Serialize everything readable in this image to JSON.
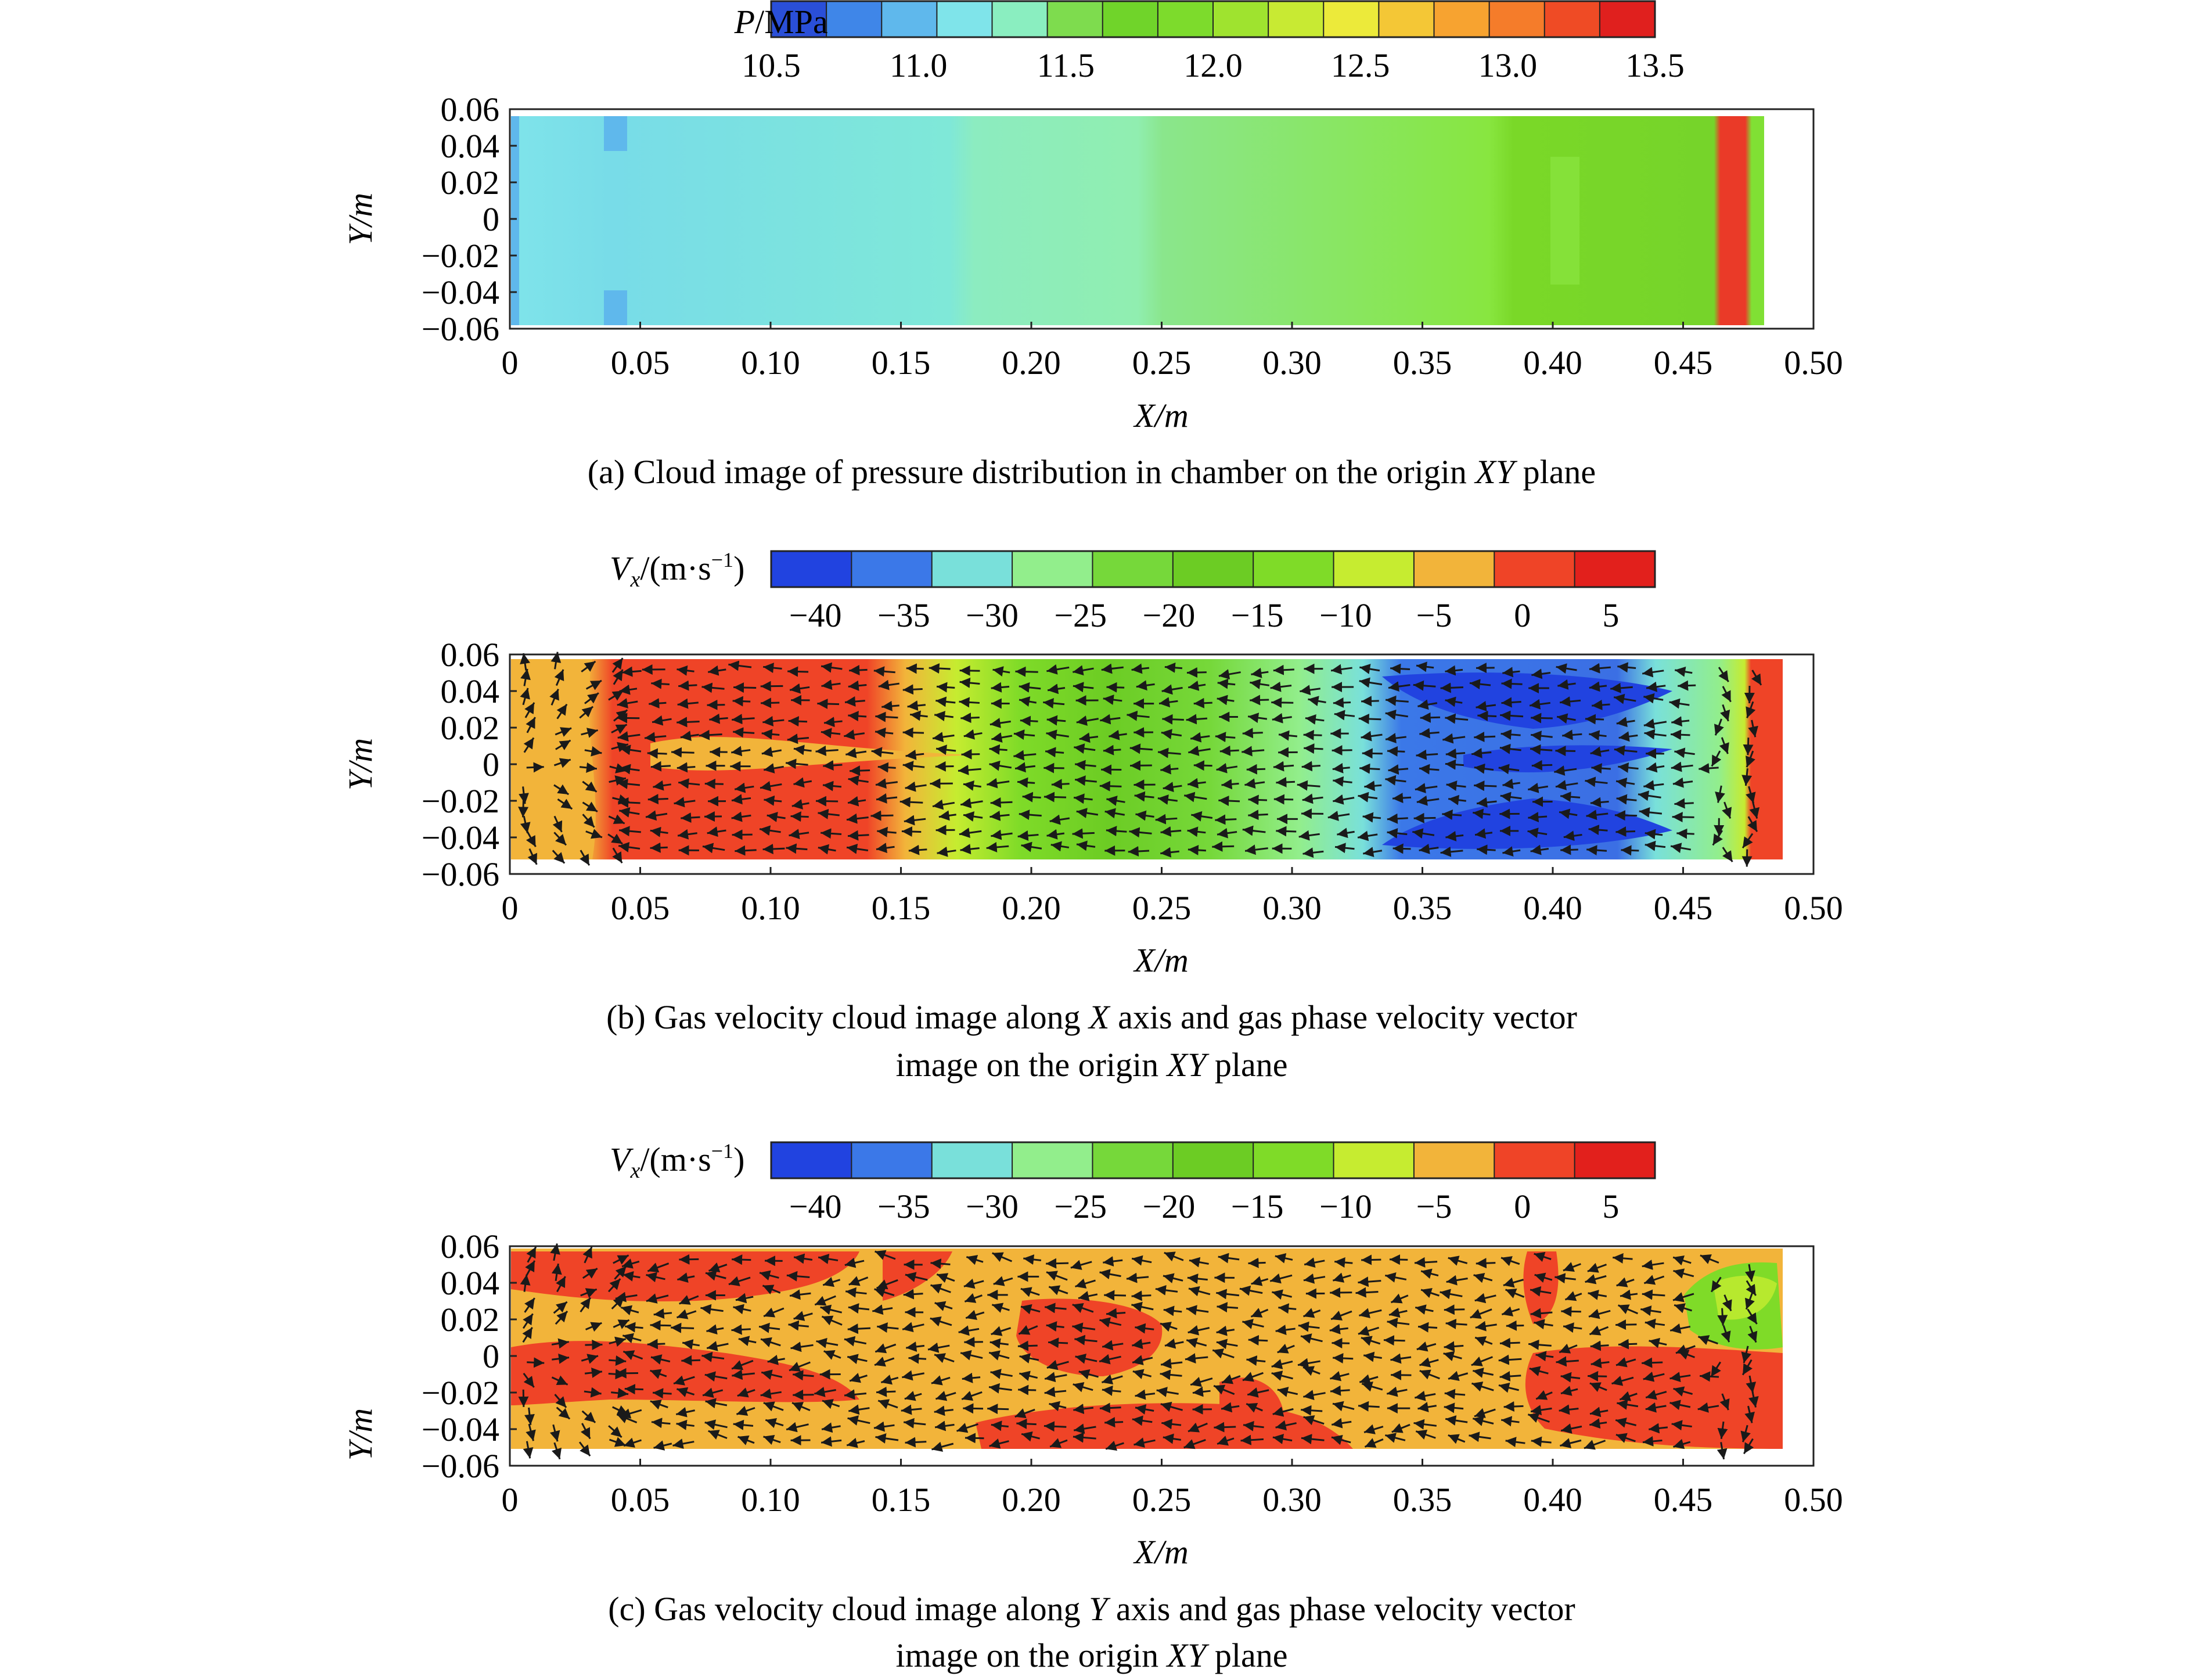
{
  "colors": {
    "pressure_scale": [
      "#2a4fd8",
      "#3f86e8",
      "#5fb8ec",
      "#7fe4ea",
      "#8aeec0",
      "#7edc4e",
      "#70d42a",
      "#7ddb2c",
      "#9fe32f",
      "#c8ea33",
      "#ecea3a",
      "#f4c736",
      "#f7a330",
      "#f57c2a",
      "#ef4b25",
      "#e0201e"
    ],
    "velocity_scale": [
      "#2143e0",
      "#3b78e8",
      "#79e0da",
      "#92ee8c",
      "#76d83a",
      "#6ccc24",
      "#7fdb28",
      "#c6ec30",
      "#f2b43a",
      "#ef4427",
      "#e2201c"
    ],
    "frame": "#222222",
    "arrow": "#1a1a1a"
  },
  "chart_data": [
    {
      "type": "heatmap",
      "title": "(a) Cloud image of pressure distribution in chamber on the origin XY plane",
      "xlabel": "X/m",
      "ylabel": "Y/m",
      "xlim": [
        0,
        0.5
      ],
      "ylim": [
        -0.06,
        0.06
      ],
      "x_ticks": [
        "0",
        "0.05",
        "0.10",
        "0.15",
        "0.20",
        "0.25",
        "0.30",
        "0.35",
        "0.40",
        "0.45",
        "0.50"
      ],
      "y_ticks": [
        "0.06",
        "0.04",
        "0.02",
        "0",
        "−0.02",
        "−0.04",
        "−0.06"
      ],
      "colorbar": {
        "label_var": "P",
        "label_unit": "/MPa",
        "range": [
          10.5,
          13.5
        ],
        "ticks": [
          "10.5",
          "11.0",
          "11.5",
          "12.0",
          "12.5",
          "13.0",
          "13.5"
        ]
      },
      "regions": [
        {
          "x": [
            0.0,
            0.04
          ],
          "p": 11.15
        },
        {
          "x": [
            0.04,
            0.175
          ],
          "p": 11.2
        },
        {
          "x": [
            0.175,
            0.25
          ],
          "p": 11.35
        },
        {
          "x": [
            0.25,
            0.385
          ],
          "p": 11.55
        },
        {
          "x": [
            0.385,
            0.47
          ],
          "p": 12.05
        },
        {
          "x": [
            0.47,
            0.479
          ],
          "p": 13.4
        },
        {
          "x": [
            0.479,
            0.487
          ],
          "p": 11.8
        }
      ]
    },
    {
      "type": "heatmap",
      "title": "(b) Gas velocity cloud image along X axis and gas phase velocity vector image on the origin XY plane",
      "xlabel": "X/m",
      "ylabel": "Y/m",
      "xlim": [
        0,
        0.5
      ],
      "ylim": [
        -0.06,
        0.06
      ],
      "x_ticks": [
        "0",
        "0.05",
        "0.10",
        "0.15",
        "0.20",
        "0.25",
        "0.30",
        "0.35",
        "0.40",
        "0.45",
        "0.50"
      ],
      "y_ticks": [
        "0.06",
        "0.04",
        "0.02",
        "0",
        "−0.02",
        "−0.04",
        "−0.06"
      ],
      "colorbar": {
        "label_var": "V",
        "label_sub": "x",
        "label_unit": "/(m·s",
        "label_sup": "−1",
        "label_close": ")",
        "range": [
          -42.5,
          7.5
        ],
        "ticks": [
          "−40",
          "−35",
          "−30",
          "−25",
          "−20",
          "−15",
          "−10",
          "−5",
          "0",
          "5"
        ]
      },
      "regions": [
        {
          "x": [
            0.0,
            0.03
          ],
          "v": -3
        },
        {
          "x": [
            0.03,
            0.15
          ],
          "v": 2
        },
        {
          "x": [
            0.15,
            0.17
          ],
          "v": -5
        },
        {
          "x": [
            0.17,
            0.2
          ],
          "v": -12
        },
        {
          "x": [
            0.2,
            0.25
          ],
          "v": -18
        },
        {
          "x": [
            0.25,
            0.32
          ],
          "v": -26
        },
        {
          "x": [
            0.32,
            0.44
          ],
          "v": -38
        },
        {
          "x": [
            0.44,
            0.475
          ],
          "v": -20
        },
        {
          "x": [
            0.475,
            0.487
          ],
          "v": 4
        }
      ]
    },
    {
      "type": "heatmap",
      "title": "(c) Gas velocity cloud image along Y axis and gas phase velocity vector image on the origin XY plane",
      "xlabel": "X/m",
      "ylabel": "Y/m",
      "xlim": [
        0,
        0.5
      ],
      "ylim": [
        -0.06,
        0.06
      ],
      "x_ticks": [
        "0",
        "0.05",
        "0.10",
        "0.15",
        "0.20",
        "0.25",
        "0.30",
        "0.35",
        "0.40",
        "0.45",
        "0.50"
      ],
      "y_ticks": [
        "0.06",
        "0.04",
        "0.02",
        "0",
        "−0.02",
        "−0.04",
        "−0.06"
      ],
      "colorbar": {
        "label_var": "V",
        "label_sub": "x",
        "label_unit": "/(m·s",
        "label_sup": "−1",
        "label_close": ")",
        "range": [
          -42.5,
          7.5
        ],
        "ticks": [
          "−40",
          "−35",
          "−30",
          "−25",
          "−20",
          "−15",
          "−10",
          "−5",
          "0",
          "5"
        ]
      },
      "regions": [
        {
          "x": [
            0.0,
            0.15
          ],
          "v": 1
        },
        {
          "x": [
            0.15,
            0.4
          ],
          "v": -2
        },
        {
          "x": [
            0.4,
            0.46
          ],
          "v": 2
        },
        {
          "x": [
            0.46,
            0.487
          ],
          "v": -15
        }
      ]
    }
  ],
  "captions": [
    {
      "pre": "(a) Cloud image of pressure distribution in chamber on the origin ",
      "em": "XY",
      "post": " plane"
    },
    {
      "pre": "(b) Gas velocity cloud image along ",
      "em": "X",
      "post": " axis and gas phase velocity vector",
      "line2_pre": "image on the origin ",
      "line2_em": "XY",
      "line2_post": " plane"
    },
    {
      "pre": "(c) Gas velocity cloud image along ",
      "em": "Y",
      "post": " axis and gas phase velocity vector",
      "line2_pre": "image on the origin ",
      "line2_em": "XY",
      "line2_post": " plane"
    }
  ]
}
